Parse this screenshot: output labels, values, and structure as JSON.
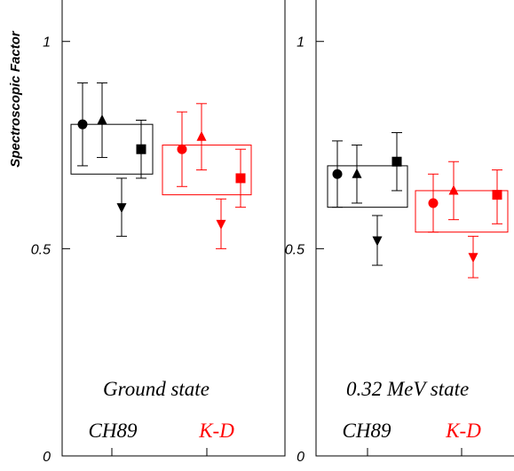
{
  "chart_data": [
    {
      "type": "scatter",
      "title": "Ground state",
      "ylabel": "Spectroscopic Factor",
      "ylim": [
        0,
        1.1
      ],
      "yticks": [
        0,
        0.5,
        1
      ],
      "ytick_labels": [
        "0",
        "0.5",
        "1"
      ],
      "grid": false,
      "groups": [
        {
          "name": "CH89",
          "color": "#000000",
          "band": [
            0.68,
            0.8
          ],
          "points": [
            {
              "marker": "circle",
              "value": 0.8,
              "err_low": 0.7,
              "err_high": 0.9
            },
            {
              "marker": "triangle-up",
              "value": 0.81,
              "err_low": 0.72,
              "err_high": 0.9
            },
            {
              "marker": "triangle-down",
              "value": 0.6,
              "err_low": 0.53,
              "err_high": 0.67
            },
            {
              "marker": "square",
              "value": 0.74,
              "err_low": 0.67,
              "err_high": 0.81
            }
          ]
        },
        {
          "name": "K-D",
          "color": "#ff0000",
          "band": [
            0.63,
            0.75
          ],
          "points": [
            {
              "marker": "circle",
              "value": 0.74,
              "err_low": 0.65,
              "err_high": 0.83
            },
            {
              "marker": "triangle-up",
              "value": 0.77,
              "err_low": 0.69,
              "err_high": 0.85
            },
            {
              "marker": "triangle-down",
              "value": 0.56,
              "err_low": 0.5,
              "err_high": 0.62
            },
            {
              "marker": "square",
              "value": 0.67,
              "err_low": 0.6,
              "err_high": 0.74
            }
          ]
        }
      ]
    },
    {
      "type": "scatter",
      "title": "0.32 MeV state",
      "ylabel": "",
      "ylim": [
        0,
        1.1
      ],
      "yticks": [
        0,
        0.5,
        1
      ],
      "ytick_labels": [
        "0",
        "0.5",
        "1"
      ],
      "grid": false,
      "groups": [
        {
          "name": "CH89",
          "color": "#000000",
          "band": [
            0.6,
            0.7
          ],
          "points": [
            {
              "marker": "circle",
              "value": 0.68,
              "err_low": 0.6,
              "err_high": 0.76
            },
            {
              "marker": "triangle-up",
              "value": 0.68,
              "err_low": 0.61,
              "err_high": 0.75
            },
            {
              "marker": "triangle-down",
              "value": 0.52,
              "err_low": 0.46,
              "err_high": 0.58
            },
            {
              "marker": "square",
              "value": 0.71,
              "err_low": 0.64,
              "err_high": 0.78
            }
          ]
        },
        {
          "name": "K-D",
          "color": "#ff0000",
          "band": [
            0.54,
            0.64
          ],
          "points": [
            {
              "marker": "circle",
              "value": 0.61,
              "err_low": 0.54,
              "err_high": 0.68
            },
            {
              "marker": "triangle-up",
              "value": 0.64,
              "err_low": 0.57,
              "err_high": 0.71
            },
            {
              "marker": "triangle-down",
              "value": 0.48,
              "err_low": 0.43,
              "err_high": 0.53
            },
            {
              "marker": "square",
              "value": 0.63,
              "err_low": 0.56,
              "err_high": 0.69
            }
          ]
        }
      ]
    }
  ]
}
